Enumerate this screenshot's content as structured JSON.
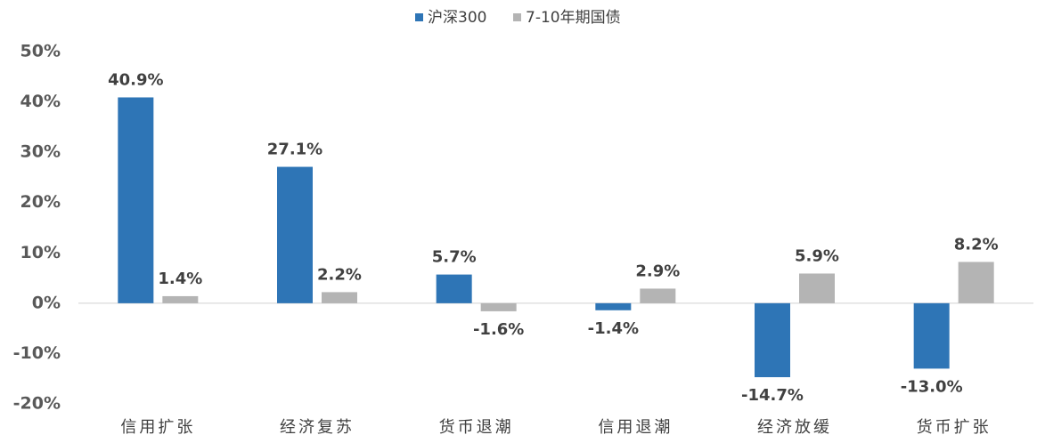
{
  "chart_data": {
    "type": "bar",
    "categories": [
      "信用扩张",
      "经济复苏",
      "货币退潮",
      "信用退潮",
      "经济放缓",
      "货币扩张"
    ],
    "series": [
      {
        "name": "沪深300",
        "color": "#2e75b6",
        "values": [
          40.9,
          27.1,
          5.7,
          -1.4,
          -14.7,
          -13.0
        ],
        "value_labels": [
          "40.9%",
          "27.1%",
          "5.7%",
          "-1.4%",
          "-14.7%",
          "-13.0%"
        ]
      },
      {
        "name": "7-10年期国债",
        "color": "#b4b4b4",
        "values": [
          1.4,
          2.2,
          -1.6,
          2.9,
          5.9,
          8.2
        ],
        "value_labels": [
          "1.4%",
          "2.2%",
          "-1.6%",
          "2.9%",
          "5.9%",
          "8.2%"
        ]
      }
    ],
    "ylim": [
      -20,
      50
    ],
    "yticks": [
      {
        "value": -20,
        "label": "-20%"
      },
      {
        "value": -10,
        "label": "-10%"
      },
      {
        "value": 0,
        "label": "0%"
      },
      {
        "value": 10,
        "label": "10%"
      },
      {
        "value": 20,
        "label": "20%"
      },
      {
        "value": 30,
        "label": "30%"
      },
      {
        "value": 40,
        "label": "40%"
      },
      {
        "value": 50,
        "label": "50%"
      }
    ],
    "legend": "top"
  }
}
